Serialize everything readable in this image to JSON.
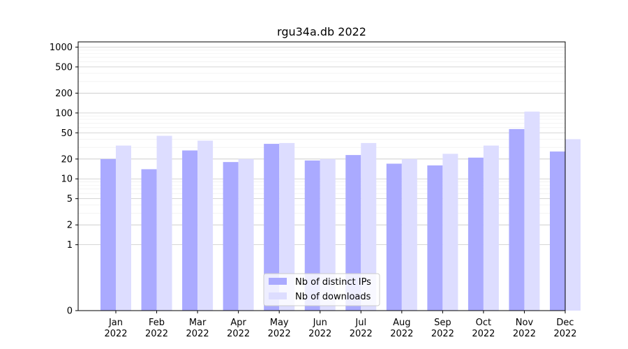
{
  "chart_data": {
    "type": "bar",
    "title": "rgu34a.db 2022",
    "xlabel": "",
    "ylabel": "",
    "y_scale": "symlog",
    "ylim": [
      0,
      1200
    ],
    "grid": "horizontal",
    "categories": [
      "Jan\n2022",
      "Feb\n2022",
      "Mar\n2022",
      "Apr\n2022",
      "May\n2022",
      "Jun\n2022",
      "Jul\n2022",
      "Aug\n2022",
      "Sep\n2022",
      "Oct\n2022",
      "Nov\n2022",
      "Dec\n2022"
    ],
    "y_ticks": [
      0,
      1,
      2,
      5,
      10,
      20,
      50,
      100,
      200,
      500,
      1000
    ],
    "y_tick_labels": [
      "0",
      "1",
      "2",
      "5",
      "10",
      "20",
      "50",
      "100",
      "200",
      "500",
      "1000"
    ],
    "series": [
      {
        "name": "Nb of distinct IPs",
        "color": "#aaaaff",
        "values": [
          20,
          14,
          27,
          18,
          34,
          19,
          23,
          17,
          16,
          21,
          57,
          26
        ]
      },
      {
        "name": "Nb of downloads",
        "color": "#ddddff",
        "values": [
          32,
          45,
          38,
          20,
          35,
          20,
          35,
          20,
          24,
          32,
          105,
          40
        ]
      }
    ],
    "legend_position": "lower-center"
  }
}
